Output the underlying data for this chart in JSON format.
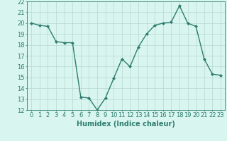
{
  "x": [
    0,
    1,
    2,
    3,
    4,
    5,
    6,
    7,
    8,
    9,
    10,
    11,
    12,
    13,
    14,
    15,
    16,
    17,
    18,
    19,
    20,
    21,
    22,
    23
  ],
  "y": [
    20,
    19.8,
    19.7,
    18.3,
    18.2,
    18.2,
    13.2,
    13.1,
    12.0,
    13.1,
    14.9,
    16.7,
    16.0,
    17.8,
    19.0,
    19.8,
    20.0,
    20.1,
    21.6,
    20.0,
    19.7,
    16.7,
    15.3,
    15.2
  ],
  "line_color": "#2e7d6e",
  "marker": "D",
  "marker_size": 2.0,
  "line_width": 1.0,
  "bg_color": "#d8f5f0",
  "grid_color": "#b8d8d0",
  "xlabel": "Humidex (Indice chaleur)",
  "xlim": [
    -0.5,
    23.5
  ],
  "ylim": [
    12,
    22
  ],
  "yticks": [
    12,
    13,
    14,
    15,
    16,
    17,
    18,
    19,
    20,
    21,
    22
  ],
  "xticks": [
    0,
    1,
    2,
    3,
    4,
    5,
    6,
    7,
    8,
    9,
    10,
    11,
    12,
    13,
    14,
    15,
    16,
    17,
    18,
    19,
    20,
    21,
    22,
    23
  ],
  "xlabel_fontsize": 7,
  "tick_fontsize": 6,
  "tick_color": "#2e7d6e",
  "axis_color": "#2e7d6e"
}
